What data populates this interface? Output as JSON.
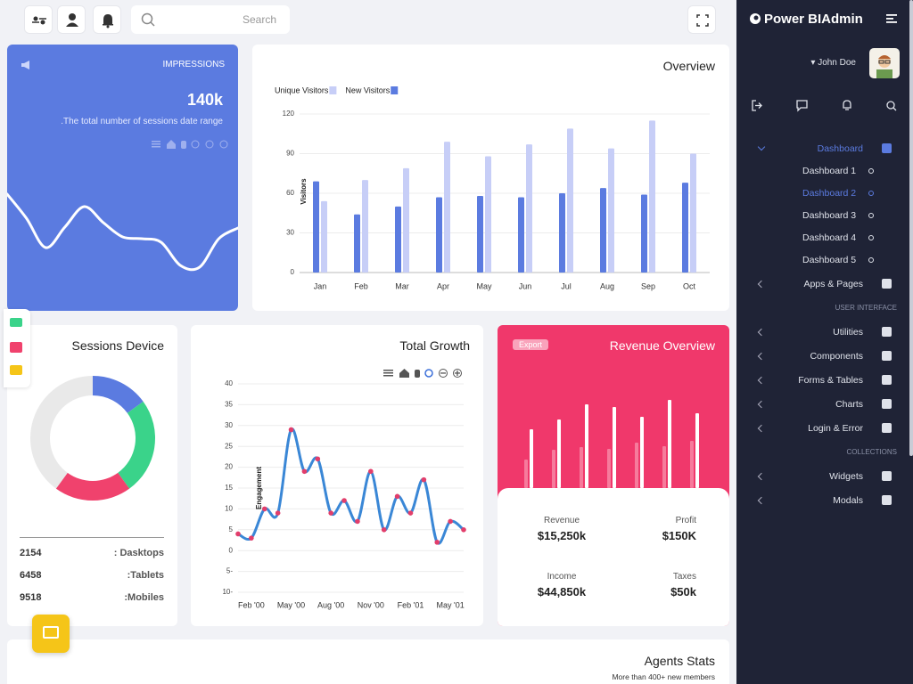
{
  "topbar": {
    "search_placeholder": "Search"
  },
  "sidebar": {
    "brand": "Power BIAdmin",
    "user": "John Doe",
    "items": [
      {
        "label": "Dashboard",
        "kind": "group",
        "active": true
      },
      {
        "label": "Dashboard 1",
        "kind": "sub"
      },
      {
        "label": "Dashboard 2",
        "kind": "sub",
        "active": true
      },
      {
        "label": "Dashboard 3",
        "kind": "sub"
      },
      {
        "label": "Dashboard 4",
        "kind": "sub"
      },
      {
        "label": "Dashboard 5",
        "kind": "sub"
      },
      {
        "label": "Apps & Pages",
        "kind": "group"
      },
      {
        "label": "USER INTERFACE",
        "kind": "section"
      },
      {
        "label": "Utilities",
        "kind": "group"
      },
      {
        "label": "Components",
        "kind": "group"
      },
      {
        "label": "Forms & Tables",
        "kind": "group"
      },
      {
        "label": "Charts",
        "kind": "group"
      },
      {
        "label": "Login & Error",
        "kind": "group"
      },
      {
        "label": "COLLECTIONS",
        "kind": "section"
      },
      {
        "label": "Widgets",
        "kind": "group"
      },
      {
        "label": "Modals",
        "kind": "group"
      }
    ]
  },
  "impressions": {
    "label": "IMPRESSIONS",
    "value": "140k",
    "subtitle": ".The total number of sessions date range"
  },
  "sessions": {
    "rows": [
      {
        "value": 2154,
        "label": ": Dasktops"
      },
      {
        "value": 6458,
        "label": ":Tablets"
      },
      {
        "value": 9518,
        "label": ":Mobiles"
      }
    ]
  },
  "revenue": {
    "button": "Export",
    "stats": [
      {
        "label": "Revenue",
        "value": "$15,250k"
      },
      {
        "label": "Profit",
        "value": "$150K"
      },
      {
        "label": "Income",
        "value": "$44,850k"
      },
      {
        "label": "Taxes",
        "value": "$50k"
      }
    ]
  },
  "agents": {
    "title": "Agents Stats",
    "subtitle": "More than 400+ new members"
  },
  "chart_data": [
    {
      "type": "line",
      "values": [
        92,
        65,
        32,
        55,
        78,
        60,
        44,
        42,
        38,
        12,
        10,
        42,
        54
      ],
      "color": "#ffffff"
    },
    {
      "type": "bar",
      "title": "Overview",
      "categories": [
        "Jan",
        "Feb",
        "Mar",
        "Apr",
        "May",
        "Jun",
        "Jul",
        "Aug",
        "Sep",
        "Oct"
      ],
      "series": [
        {
          "name": "Unique Visitors",
          "color": "#c7cef7",
          "values": [
            54,
            70,
            79,
            99,
            88,
            97,
            109,
            94,
            115,
            90
          ]
        },
        {
          "name": "New Visitors",
          "color": "#5b7be0",
          "values": [
            69,
            44,
            50,
            57,
            58,
            57,
            60,
            64,
            59,
            68
          ]
        }
      ],
      "ylim": [
        0,
        120
      ],
      "yticks": [
        0,
        30,
        60,
        90,
        120
      ],
      "ylabel": "Visitors",
      "grid": true,
      "legend": "top-left"
    },
    {
      "type": "donut",
      "title": "Sessions Device",
      "values": [
        15,
        25,
        20,
        40
      ],
      "colors": [
        "#5b7be0",
        "#3ad38a",
        "#f0426d",
        "#e9e9e9"
      ]
    },
    {
      "type": "line",
      "title": "Total Growth",
      "categories": [
        null,
        "Feb '00",
        null,
        null,
        "May '00",
        null,
        null,
        "Aug '00",
        null,
        null,
        "Nov '00",
        null,
        null,
        "Feb '01",
        null,
        null,
        "May '01",
        null
      ],
      "values": [
        4,
        3,
        10,
        9,
        29,
        19,
        22,
        9,
        12,
        7,
        19,
        5,
        13,
        9,
        17,
        2,
        7,
        5
      ],
      "ylim": [
        -10,
        40
      ],
      "yticks": [
        40,
        35,
        30,
        25,
        20,
        15,
        10,
        5,
        0,
        {
          "value": -5,
          "label": "5-"
        },
        {
          "value": -10,
          "label": "10-"
        }
      ],
      "ylabel": "Engagement",
      "grid": true,
      "color": "#3a87d6",
      "marker_color": "#e23e6b"
    },
    {
      "type": "bar",
      "title": "Revenue Overview",
      "series": [
        {
          "color": "#ffffff",
          "values": [
            66,
            77,
            94,
            91,
            80,
            99,
            84
          ]
        },
        {
          "color": "#f67b9c",
          "values": [
            32,
            43,
            46,
            44,
            51,
            47,
            53
          ]
        }
      ]
    }
  ]
}
